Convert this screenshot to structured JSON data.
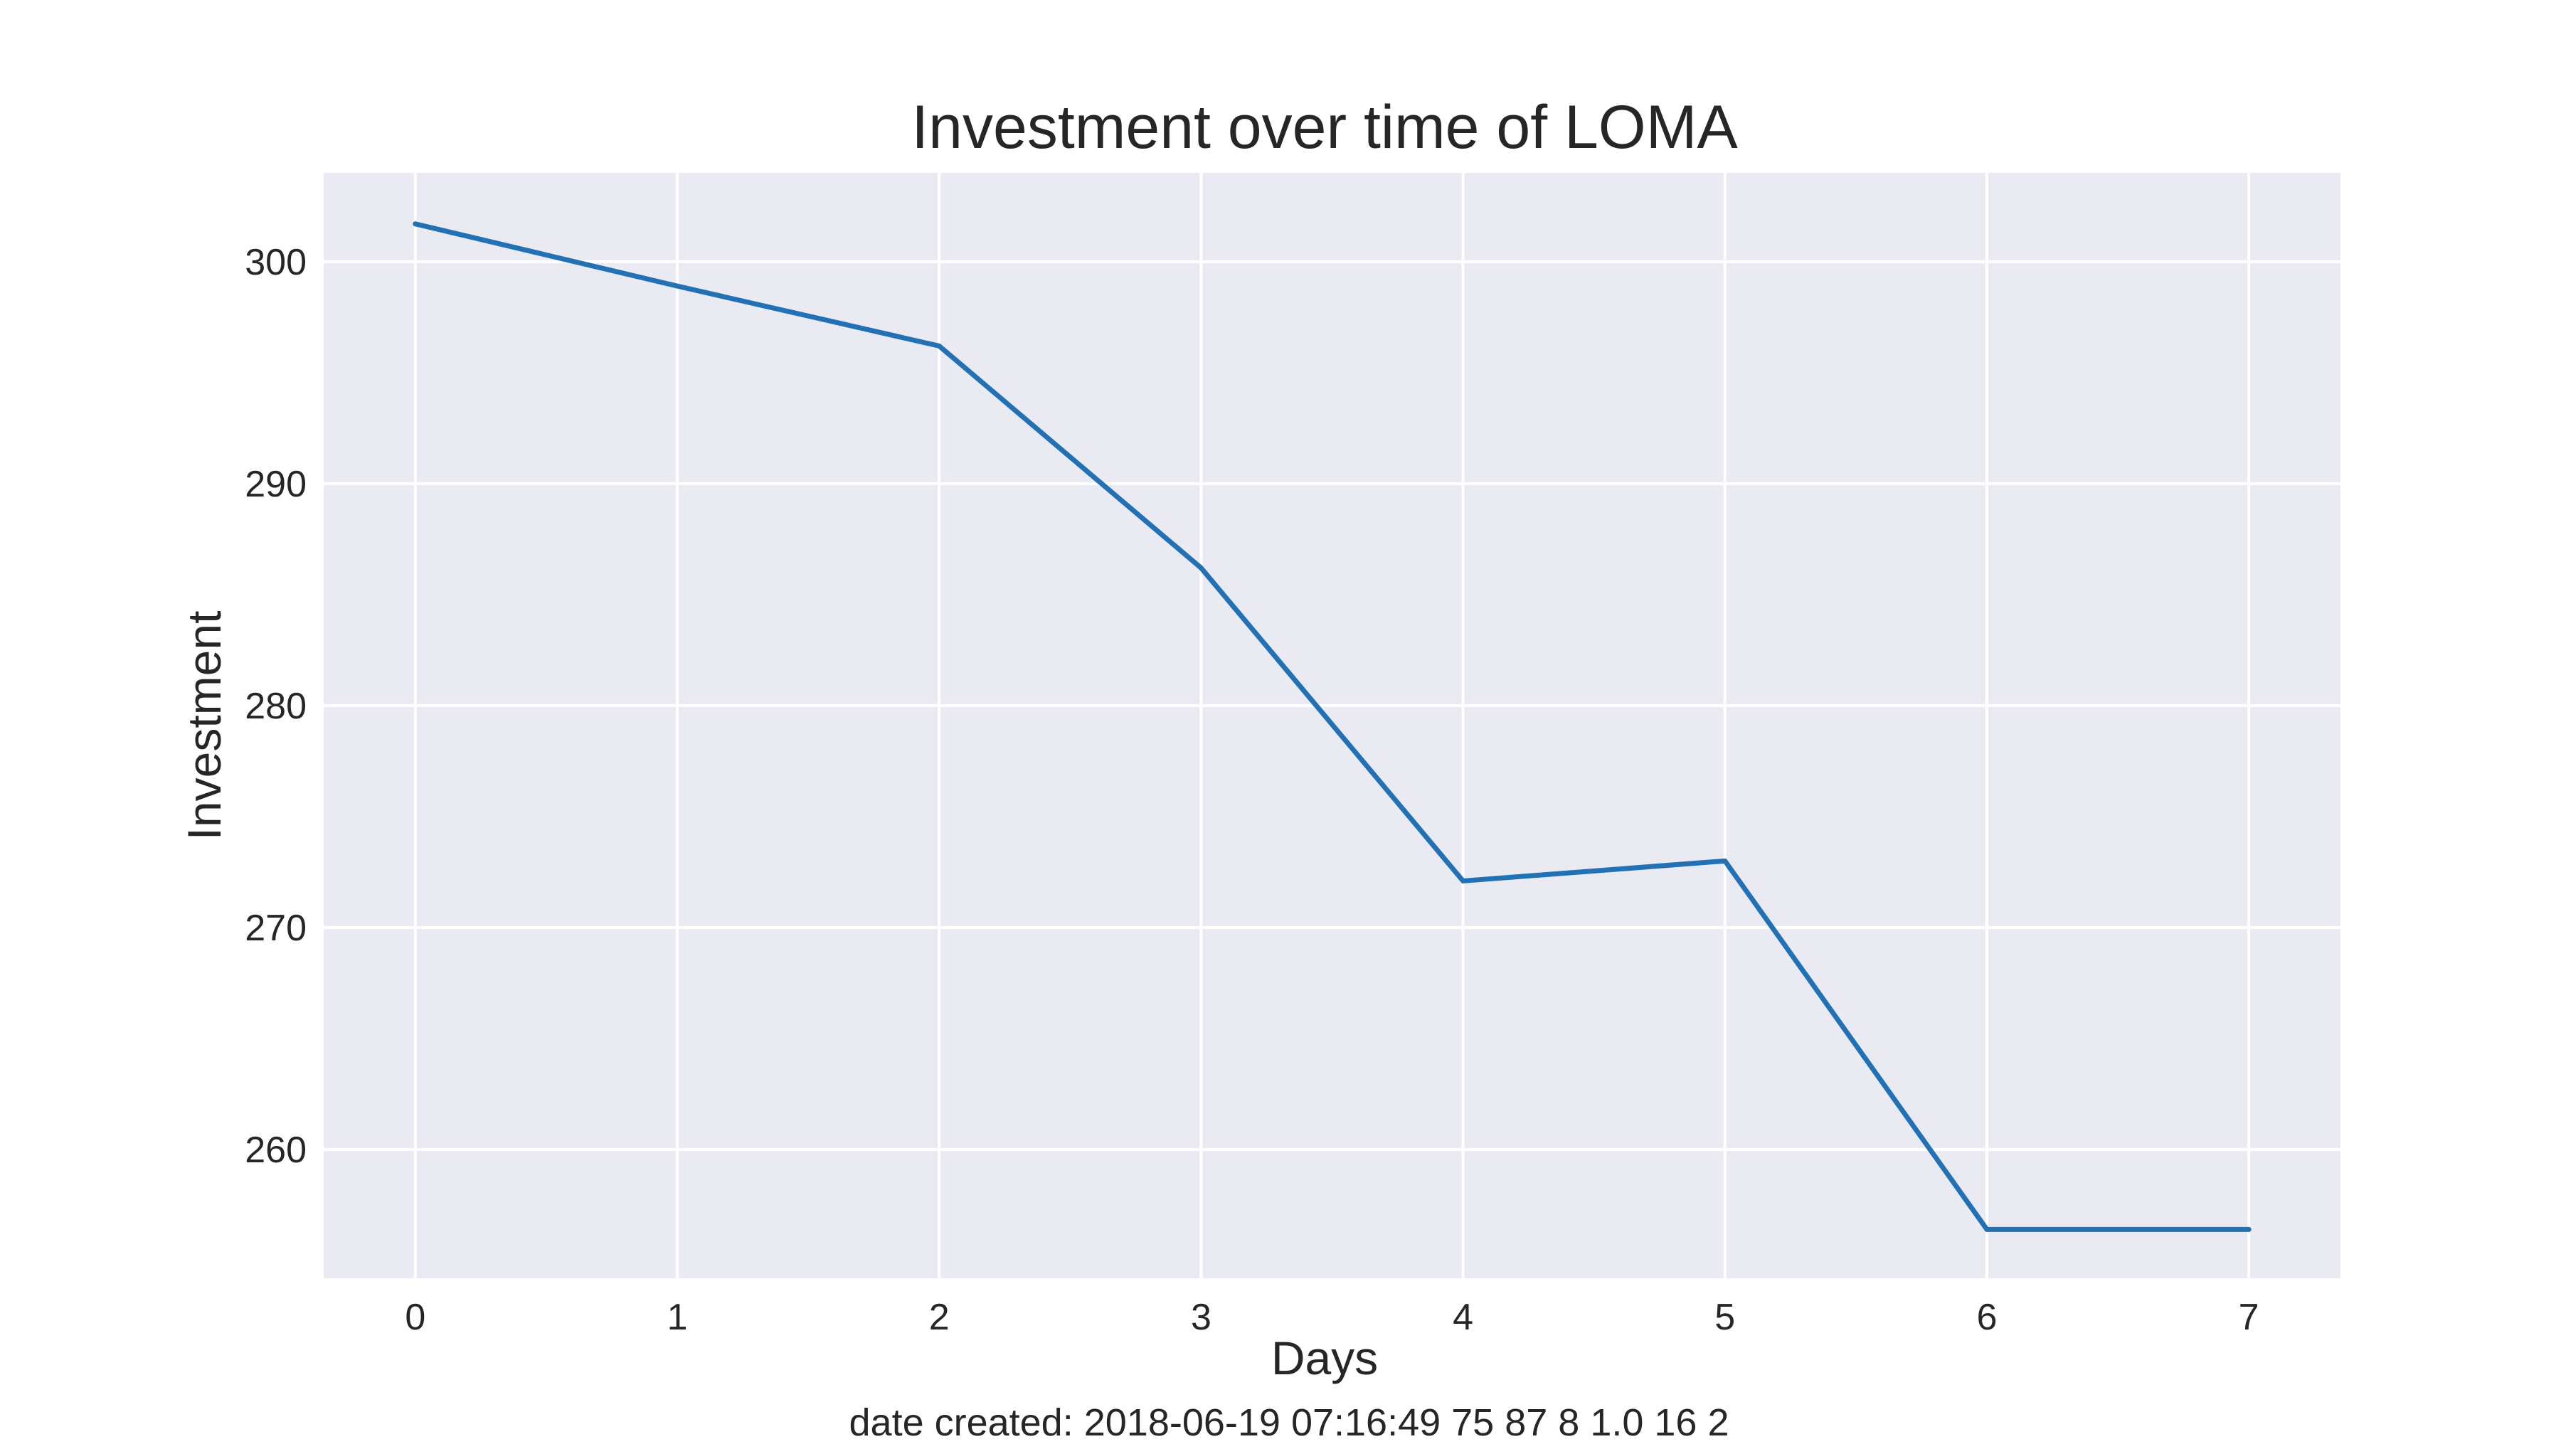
{
  "chart_data": {
    "type": "line",
    "title": "Investment over time of LOMA",
    "xlabel": "Days",
    "ylabel": "Investment",
    "footnote": "date created: 2018-06-19 07:16:49 75 87 8 1.0 16 2",
    "x": [
      0,
      1,
      2,
      3,
      4,
      5,
      6,
      7
    ],
    "series": [
      {
        "values": [
          301.7,
          298.9,
          296.2,
          286.2,
          272.1,
          273.0,
          256.4,
          256.4
        ],
        "color": "#2271b5"
      }
    ],
    "xlim": [
      -0.35,
      7.35
    ],
    "ylim": [
      254.2,
      304.0
    ],
    "xticks": [
      0,
      1,
      2,
      3,
      4,
      5,
      6,
      7
    ],
    "xtick_labels": [
      "0",
      "1",
      "2",
      "3",
      "4",
      "5",
      "6",
      "7"
    ],
    "yticks": [
      260,
      270,
      280,
      290,
      300
    ],
    "ytick_labels": [
      "260",
      "270",
      "280",
      "290",
      "300"
    ],
    "grid": true,
    "background_color": "#eaeaf2",
    "grid_color": "#ffffff",
    "legend": "none"
  }
}
